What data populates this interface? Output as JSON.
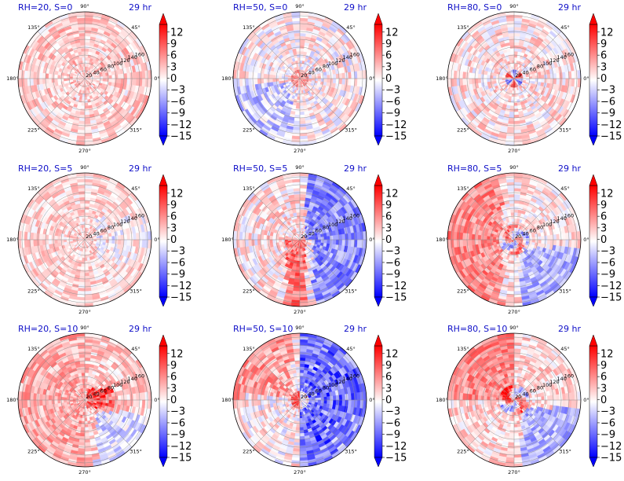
{
  "chart_data": {
    "type": "heatmap",
    "projection": "polar",
    "grid_layout": "3 rows x 3 columns",
    "colormap": "bwr",
    "colors": {
      "negative": "#0000ff",
      "zero": "#ffffff",
      "positive": "#ff0000",
      "title": "#1010c8"
    },
    "angle_ticks": [
      "0°",
      "45°",
      "90°",
      "135°",
      "180°",
      "225°",
      "270°",
      "315°"
    ],
    "radial_ticks": [
      "20",
      "40",
      "60",
      "80",
      "100",
      "120",
      "140",
      "160"
    ],
    "radial_range": [
      0,
      170
    ],
    "colorbar": {
      "range": [
        -15,
        14
      ],
      "ticks": [
        "12",
        "9",
        "6",
        "3",
        "0",
        "−3",
        "−6",
        "−9",
        "−12",
        "−15"
      ],
      "extend": "both"
    },
    "panels": [
      {
        "title": "RH=20, S=0",
        "time": "29 hr",
        "rh": 20,
        "s": 0,
        "pattern": "weak scattered positive anomalies everywhere, faint negative patches",
        "mean_sign": "positive",
        "intensity": 0.25
      },
      {
        "title": "RH=50, S=0",
        "time": "29 hr",
        "rh": 50,
        "s": 0,
        "pattern": "mixed weak red and blue patches, negative lobe in lower-left, red near center",
        "mean_sign": "mixed",
        "intensity": 0.35
      },
      {
        "title": "RH=80, S=0",
        "time": "29 hr",
        "rh": 80,
        "s": 0,
        "pattern": "weak mixed field with strong red spots near the center ring",
        "mean_sign": "mixed",
        "intensity": 0.35
      },
      {
        "title": "RH=20, S=5",
        "time": "29 hr",
        "rh": 20,
        "s": 5,
        "pattern": "weak positive with scattered blue streaks to the east",
        "mean_sign": "positive",
        "intensity": 0.3
      },
      {
        "title": "RH=50, S=5",
        "time": "29 hr",
        "rh": 50,
        "s": 5,
        "pattern": "red band to the south-center, strong blue region to the east and south-east",
        "mean_sign": "mixed",
        "intensity": 0.55
      },
      {
        "title": "RH=80, S=5",
        "time": "29 hr",
        "rh": 80,
        "s": 5,
        "pattern": "positive outer ring to the west, spiral mixed structure near center, blue to the south-east",
        "mean_sign": "mixed",
        "intensity": 0.45
      },
      {
        "title": "RH=20, S=10",
        "time": "29 hr",
        "rh": 20,
        "s": 10,
        "pattern": "positive west half, strong red cluster to the east of center, blue patches south-east",
        "mean_sign": "positive",
        "intensity": 0.5
      },
      {
        "title": "RH=50, S=10",
        "time": "29 hr",
        "rh": 50,
        "s": 10,
        "pattern": "strong blue over the east half, red in the north-west and near center",
        "mean_sign": "mixed",
        "intensity": 0.7
      },
      {
        "title": "RH=80, S=10",
        "time": "29 hr",
        "rh": 80,
        "s": 10,
        "pattern": "positive outer region north-west, strong red bands near the center, blue to the south-east",
        "mean_sign": "mixed",
        "intensity": 0.6
      }
    ]
  }
}
